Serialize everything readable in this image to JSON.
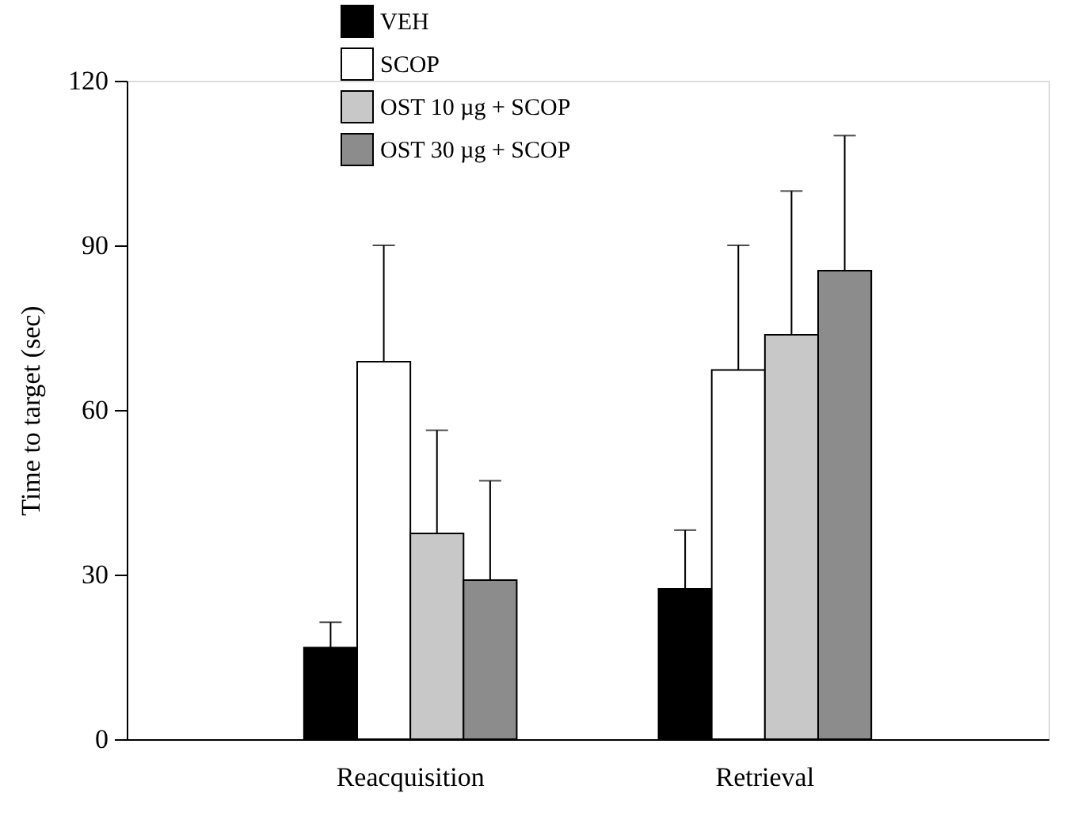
{
  "chart_data": {
    "type": "bar",
    "ylabel": "Time to target (sec)",
    "categories": [
      "Reacquisition",
      "Retrieval"
    ],
    "series": [
      {
        "name": "VEH",
        "color": "#000000",
        "values": [
          16.7,
          27.4
        ],
        "errors": [
          [
            16.7,
            21.3
          ],
          [
            27.4,
            38.1
          ]
        ]
      },
      {
        "name": "SCOP",
        "color": "#ffffff",
        "values": [
          68.8,
          67.3
        ],
        "errors": [
          [
            68.8,
            90
          ],
          [
            67.3,
            90
          ]
        ]
      },
      {
        "name": "OST 10 µg + SCOP",
        "color": "#c8c8c8",
        "values": [
          37.5,
          73.7
        ],
        "errors": [
          [
            37.5,
            56.3
          ],
          [
            73.7,
            99.9
          ]
        ]
      },
      {
        "name": "OST 30 µg + SCOP",
        "color": "#8c8c8c",
        "values": [
          29,
          85.4
        ],
        "errors": [
          [
            29,
            47.1
          ],
          [
            85.4,
            110
          ]
        ]
      }
    ],
    "ylim": [
      0,
      120
    ],
    "yticks": [
      0,
      30,
      60,
      90,
      120
    ],
    "grid": false,
    "legend": "top"
  }
}
